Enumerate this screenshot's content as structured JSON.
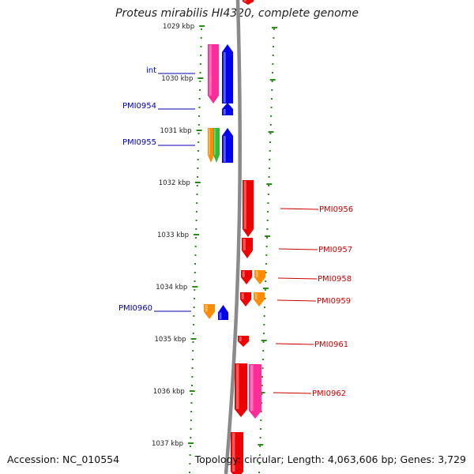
{
  "title": "Proteus mirabilis HI4320, complete genome",
  "footer": {
    "accession": "Accession: NC_010554",
    "topology": "Topology: circular; Length: 4,063,606 bp; Genes: 3,729"
  },
  "colors": {
    "backbone": "#8a8a8a",
    "ticks": "#2a8a1a",
    "reverse_label": "#0000b0",
    "forward_label": "#cc0000",
    "red": "#ee0000",
    "pink": "#ff2c9a",
    "blue": "#0000ee",
    "orange": "#ff8c00",
    "green": "#33bb33"
  },
  "scale": {
    "labels": [
      "1029 kbp",
      "1030 kbp",
      "1031 kbp",
      "1032 kbp",
      "1033 kbp",
      "1034 kbp",
      "1035 kbp",
      "1036 kbp",
      "1037 kbp"
    ]
  },
  "gene_labels_left": [
    "int",
    "PMI0954",
    "PMI0955",
    "PMI0960"
  ],
  "gene_labels_right": [
    "PMI0956",
    "PMI0957",
    "PMI0958",
    "PMI0959",
    "PMI0961",
    "PMI0962"
  ]
}
